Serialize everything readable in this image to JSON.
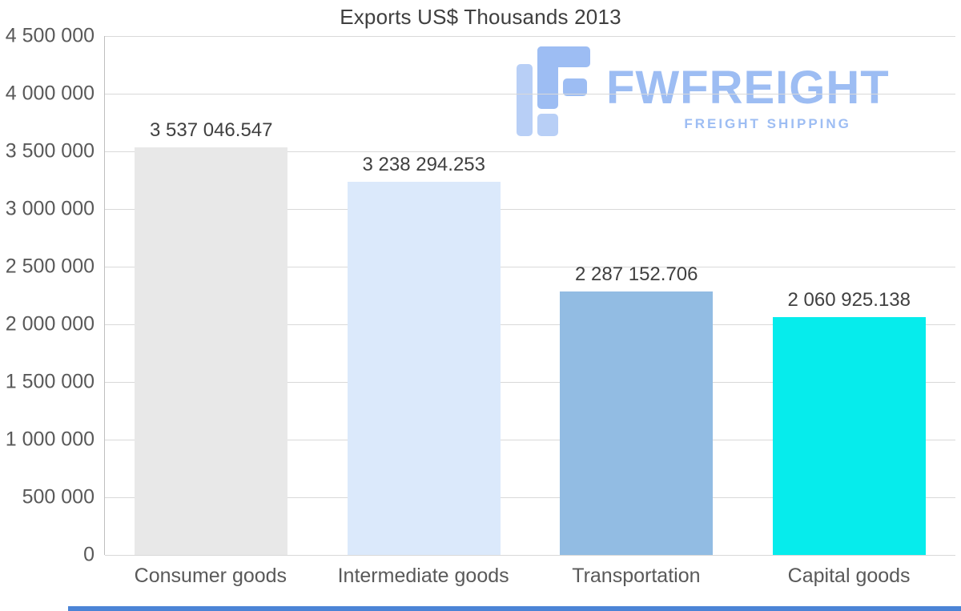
{
  "palette": {
    "page-bg": "#ffffff",
    "title-color": "#3f3f3f",
    "axis-label-color": "#595959",
    "value-label-color": "#404040",
    "grid-color": "#d9d9d9",
    "axis-line-color": "#bfbfbf",
    "brand-color": "#9dbdf3",
    "footer-color": "#4b84d6"
  },
  "chart_data": {
    "type": "bar",
    "title": "Exports US$ Thousands 2013",
    "categories": [
      "Consumer goods",
      "Intermediate goods",
      "Transportation",
      "Capital goods"
    ],
    "values": [
      3537046.547,
      3238294.253,
      2287152.706,
      2060925.138
    ],
    "value_labels": [
      "3 537 046.547",
      "3 238 294.253",
      "2 287 152.706",
      "2 060 925.138"
    ],
    "bar_colors": [
      "#e8e8e8",
      "#dbe9fb",
      "#92bce3",
      "#06ecec"
    ],
    "xlabel": "",
    "ylabel": "",
    "ylim": [
      0,
      4500000
    ],
    "ytick_interval": 500000,
    "yticks": [
      {
        "value": 4500000,
        "label": "4 500 000"
      },
      {
        "value": 4000000,
        "label": "4 000 000"
      },
      {
        "value": 3500000,
        "label": "3 500 000"
      },
      {
        "value": 3000000,
        "label": "3 000 000"
      },
      {
        "value": 2500000,
        "label": "2 500 000"
      },
      {
        "value": 2000000,
        "label": "2 000 000"
      },
      {
        "value": 1500000,
        "label": "1 500 000"
      },
      {
        "value": 1000000,
        "label": "1 000 000"
      },
      {
        "value": 500000,
        "label": "500 000"
      },
      {
        "value": 0,
        "label": "0"
      }
    ],
    "grid": true,
    "legend": "none"
  },
  "watermark": {
    "brand": "FWFREIGHT",
    "tagline": "FREIGHT SHIPPING"
  }
}
